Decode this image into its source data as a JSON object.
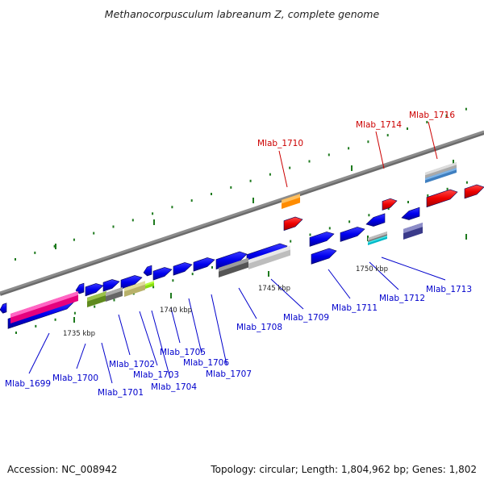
{
  "title": "Methanocorpusculum labreanum Z, complete genome",
  "footer": {
    "accession": "Accession: NC_008942",
    "summary": "Topology: circular; Length: 1,804,962 bp; Genes: 1,802"
  },
  "colors": {
    "backbone": "#8c8c8c",
    "tick": "#1e7a1e",
    "forward_label": "#0000cc",
    "highlight_label": "#cc0000",
    "kbp_label": "#222222"
  },
  "scale_labels": [
    {
      "text": "1735 kbp"
    },
    {
      "text": "1740 kbp"
    },
    {
      "text": "1745 kbp"
    },
    {
      "text": "1750 kbp"
    }
  ],
  "gene_labels": [
    {
      "text": "Mlab_1699",
      "highlight": false
    },
    {
      "text": "Mlab_1700",
      "highlight": false
    },
    {
      "text": "Mlab_1701",
      "highlight": false
    },
    {
      "text": "Mlab_1702",
      "highlight": false
    },
    {
      "text": "Mlab_1703",
      "highlight": false
    },
    {
      "text": "Mlab_1704",
      "highlight": false
    },
    {
      "text": "Mlab_1705",
      "highlight": false
    },
    {
      "text": "Mlab_1706",
      "highlight": false
    },
    {
      "text": "Mlab_1707",
      "highlight": false
    },
    {
      "text": "Mlab_1708",
      "highlight": false
    },
    {
      "text": "Mlab_1709",
      "highlight": false
    },
    {
      "text": "Mlab_1710",
      "highlight": true
    },
    {
      "text": "Mlab_1711",
      "highlight": false
    },
    {
      "text": "Mlab_1712",
      "highlight": false
    },
    {
      "text": "Mlab_1713",
      "highlight": false
    },
    {
      "text": "Mlab_1714",
      "highlight": true
    },
    {
      "text": "Mlab_1716",
      "highlight": true
    }
  ]
}
